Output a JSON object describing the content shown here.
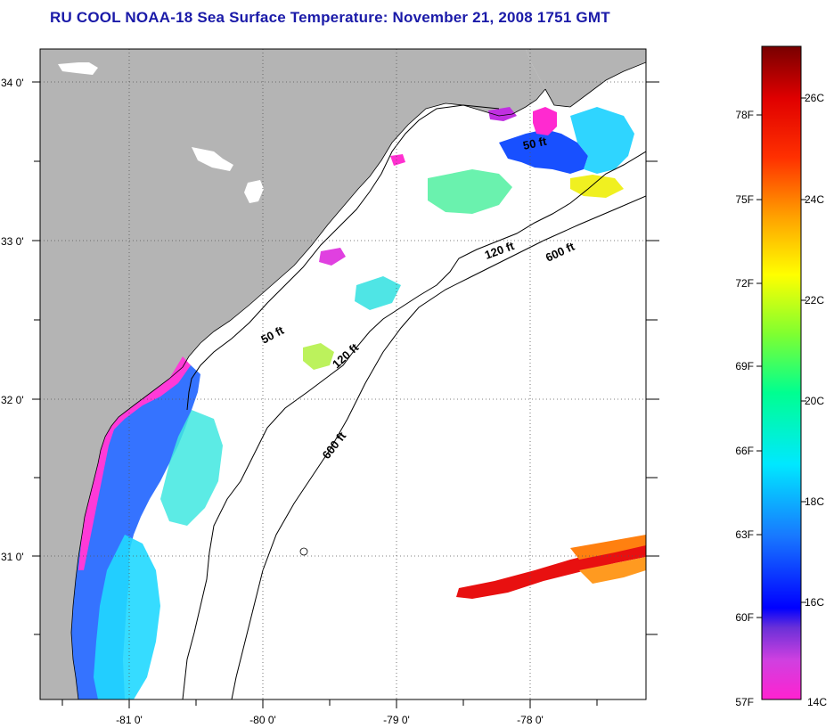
{
  "title": "RU COOL  NOAA-18  Sea Surface Temperature:  November 21, 2008 1751 GMT",
  "map": {
    "lon_ticks": [
      "-81 0'",
      "-80 0'",
      "-79 0'",
      "-78 0'"
    ],
    "lat_ticks": [
      "34 0'",
      "33 0'",
      "32 0'",
      "31 0'"
    ],
    "contours": [
      {
        "name": "50 ft",
        "label": "50 ft"
      },
      {
        "name": "120 ft",
        "label": "120 ft"
      },
      {
        "name": "600 ft",
        "label": "600 ft"
      }
    ]
  },
  "colorbar": {
    "fahrenheit_labels": [
      "78F",
      "75F",
      "72F",
      "69F",
      "66F",
      "63F",
      "60F",
      "57F"
    ],
    "celsius_labels": [
      "26C",
      "24C",
      "22C",
      "20C",
      "18C",
      "16C",
      "14C"
    ]
  },
  "colors": {
    "land": "#b4b4b4",
    "ocean": "#ffffff",
    "title": "#1a1aa8"
  }
}
